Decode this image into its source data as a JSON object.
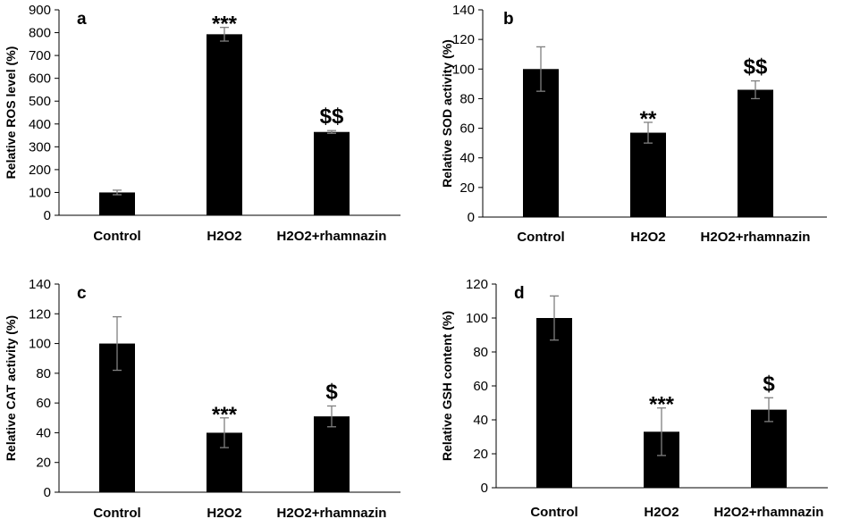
{
  "chart_data": [
    {
      "type": "bar",
      "panel_label": "a",
      "categories": [
        "Control",
        "H2O2",
        "H2O2+rhamnazin"
      ],
      "values": [
        100,
        793,
        365
      ],
      "errors": [
        10,
        30,
        6
      ],
      "annotations": [
        "",
        "***",
        "$$"
      ],
      "ylabel": "Relative ROS level (%)",
      "ylim": [
        0,
        900
      ],
      "yticks": [
        0,
        100,
        200,
        300,
        400,
        500,
        600,
        700,
        800,
        900
      ],
      "bar_color": "#000000"
    },
    {
      "type": "bar",
      "panel_label": "b",
      "categories": [
        "Control",
        "H2O2",
        "H2O2+rhamnazin"
      ],
      "values": [
        100,
        57,
        86
      ],
      "errors": [
        15,
        7,
        6
      ],
      "annotations": [
        "",
        "**",
        "$$"
      ],
      "ylabel": "Relative SOD activity (%)",
      "ylim": [
        0,
        140
      ],
      "yticks": [
        0,
        20,
        40,
        60,
        80,
        100,
        120,
        140
      ],
      "bar_color": "#000000"
    },
    {
      "type": "bar",
      "panel_label": "c",
      "categories": [
        "Control",
        "H2O2",
        "H2O2+rhamnazin"
      ],
      "values": [
        100,
        40,
        51
      ],
      "errors": [
        18,
        10,
        7
      ],
      "annotations": [
        "",
        "***",
        "$"
      ],
      "ylabel": "Relative CAT activity (%)",
      "ylim": [
        0,
        140
      ],
      "yticks": [
        0,
        20,
        40,
        60,
        80,
        100,
        120,
        140
      ],
      "bar_color": "#000000"
    },
    {
      "type": "bar",
      "panel_label": "d",
      "categories": [
        "Control",
        "H2O2",
        "H2O2+rhamnazin"
      ],
      "values": [
        100,
        33,
        46
      ],
      "errors": [
        13,
        14,
        7
      ],
      "annotations": [
        "",
        "***",
        "$"
      ],
      "ylabel": "Relative GSH content (%)",
      "ylim": [
        0,
        120
      ],
      "yticks": [
        0,
        20,
        40,
        60,
        80,
        100,
        120
      ],
      "bar_color": "#000000"
    }
  ]
}
